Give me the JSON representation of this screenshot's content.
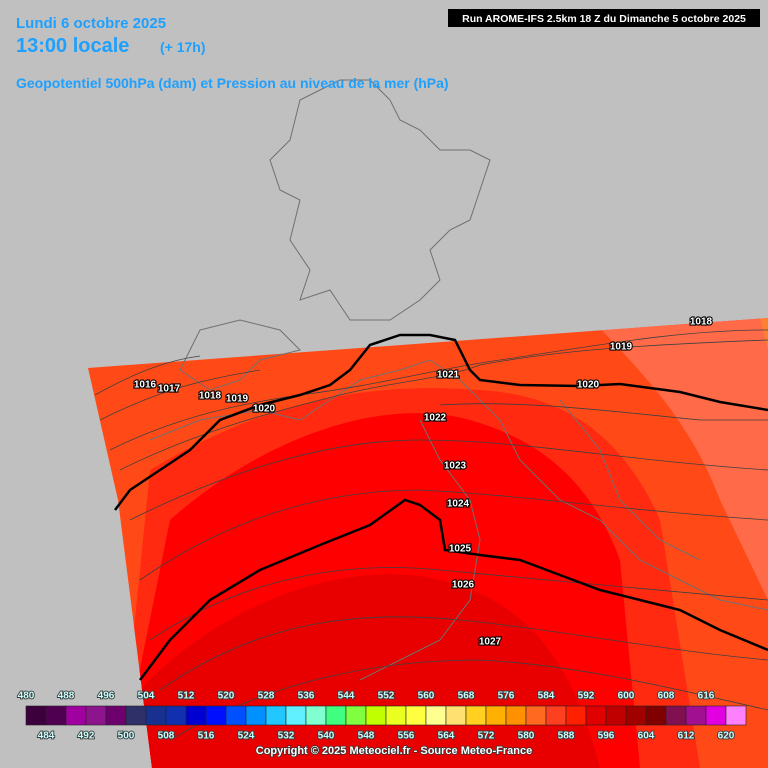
{
  "header": {
    "date": "Lundi 6 octobre 2025",
    "time": "13:00 locale",
    "lead": "(+ 17h)",
    "subtitle": "Geopotentiel 500hPa (dam) et Pression au niveau de la mer (hPa)",
    "run": "Run AROME-IFS 2.5km 18 Z du Dimanche 5 octobre 2025"
  },
  "isobars": {
    "labels": [
      1016,
      1017,
      1018,
      1019,
      1020,
      1021,
      1022,
      1023,
      1024,
      1025,
      1026,
      1027,
      1020,
      1019,
      1018
    ]
  },
  "legend": {
    "values": [
      480,
      484,
      488,
      492,
      496,
      500,
      504,
      508,
      512,
      516,
      520,
      524,
      528,
      532,
      536,
      540,
      544,
      548,
      552,
      556,
      560,
      564,
      568,
      572,
      576,
      580,
      584,
      588,
      592,
      596,
      600,
      604,
      608,
      612,
      616,
      620
    ],
    "colors": [
      "#3c003c",
      "#500050",
      "#a000a0",
      "#8c148c",
      "#6e006e",
      "#303068",
      "#183090",
      "#1030b0",
      "#0000d0",
      "#0010ff",
      "#0050ff",
      "#0090ff",
      "#20c8ff",
      "#60f0ff",
      "#80ffd0",
      "#40ff80",
      "#80ff40",
      "#c0ff00",
      "#e8ff20",
      "#ffff40",
      "#ffff90",
      "#ffe070",
      "#ffd020",
      "#ffb000",
      "#ff9000",
      "#ff6a20",
      "#ff4020",
      "#ff2000",
      "#e00000",
      "#c00000",
      "#a00000",
      "#800000",
      "#801050",
      "#a01090",
      "#e000e0",
      "#ff80ff"
    ]
  },
  "copyright": "Copyright © 2025 Meteociel.fr - Source Meteo-France"
}
